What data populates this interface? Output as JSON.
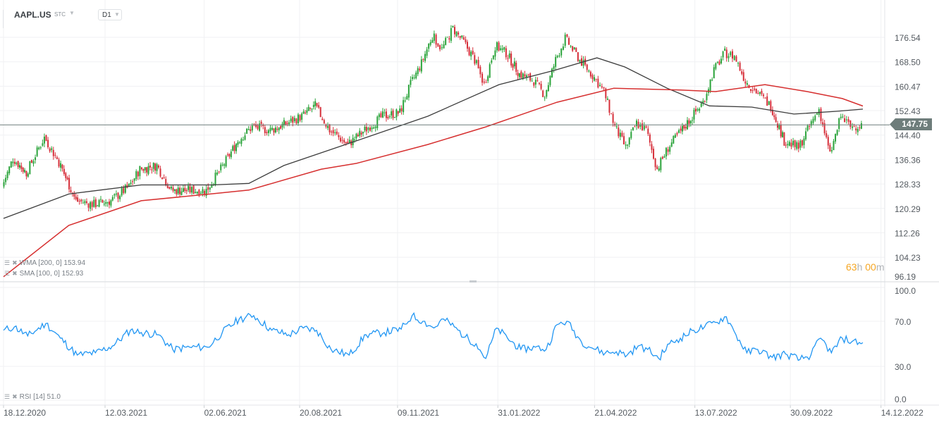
{
  "header": {
    "symbol": "AAPL.US",
    "instrument_type": "STC",
    "timeframe": "D1"
  },
  "indicators": {
    "wma_label": "WMA [200, 0] 153.94",
    "sma_label": "SMA [100, 0] 152.93",
    "rsi_label": "RSI [14] 51.0"
  },
  "timer": {
    "hours": "63",
    "h": "h",
    "minutes": "00",
    "m": "m"
  },
  "current_price": "147.75",
  "colors": {
    "up": "#2aa33a",
    "down": "#d62f3a",
    "wma": "#d62f2f",
    "sma": "#3c3c3c",
    "rsi": "#2196f3",
    "price_line": "#6e7d7b"
  },
  "chart_data": [
    {
      "type": "candlestick",
      "price_axis_ticks": [
        "176.54",
        "168.50",
        "160.47",
        "152.43",
        "144.40",
        "136.36",
        "128.33",
        "120.29",
        "112.26",
        "104.23",
        "96.19"
      ],
      "ylim": [
        96.19,
        176.54
      ],
      "date_ticks": [
        "18.12.2020",
        "12.03.2021",
        "02.06.2021",
        "20.08.2021",
        "09.11.2021",
        "31.01.2022",
        "21.04.2022",
        "13.07.2022",
        "30.09.2022",
        "14.12.2022"
      ],
      "xlim": [
        "2020-12-18",
        "2022-12-14"
      ],
      "grid": true,
      "closes": [
        [
          "2020-12-18",
          127.4
        ],
        [
          "2020-12-27",
          136.7
        ],
        [
          "2021-01-07",
          132.0
        ],
        [
          "2021-01-22",
          143.6
        ],
        [
          "2021-02-03",
          135.5
        ],
        [
          "2021-02-17",
          122.8
        ],
        [
          "2021-03-04",
          121.6
        ],
        [
          "2021-03-18",
          122.8
        ],
        [
          "2021-04-02",
          127.4
        ],
        [
          "2021-04-11",
          133.2
        ],
        [
          "2021-04-25",
          134.4
        ],
        [
          "2021-05-07",
          126.2
        ],
        [
          "2021-05-21",
          126.2
        ],
        [
          "2021-06-05",
          126.2
        ],
        [
          "2021-06-17",
          133.2
        ],
        [
          "2021-07-01",
          142.5
        ],
        [
          "2021-07-13",
          147.1
        ],
        [
          "2021-07-28",
          146.0
        ],
        [
          "2021-08-11",
          148.3
        ],
        [
          "2021-08-23",
          150.6
        ],
        [
          "2021-09-03",
          154.0
        ],
        [
          "2021-09-15",
          146.0
        ],
        [
          "2021-09-30",
          141.3
        ],
        [
          "2021-10-14",
          146.0
        ],
        [
          "2021-10-29",
          150.6
        ],
        [
          "2021-11-12",
          151.8
        ],
        [
          "2021-11-21",
          161.0
        ],
        [
          "2021-11-30",
          168.0
        ],
        [
          "2021-12-09",
          177.2
        ],
        [
          "2021-12-17",
          172.6
        ],
        [
          "2021-12-26",
          179.5
        ],
        [
          "2022-01-04",
          174.9
        ],
        [
          "2022-01-13",
          169.1
        ],
        [
          "2022-01-21",
          161.0
        ],
        [
          "2022-01-30",
          173.8
        ],
        [
          "2022-02-08",
          171.4
        ],
        [
          "2022-02-19",
          164.5
        ],
        [
          "2022-03-03",
          162.2
        ],
        [
          "2022-03-12",
          157.5
        ],
        [
          "2022-03-21",
          169.1
        ],
        [
          "2022-03-29",
          176.1
        ],
        [
          "2022-04-10",
          169.1
        ],
        [
          "2022-04-22",
          163.3
        ],
        [
          "2022-04-30",
          158.7
        ],
        [
          "2022-05-09",
          147.1
        ],
        [
          "2022-05-18",
          140.2
        ],
        [
          "2022-05-27",
          148.3
        ],
        [
          "2022-06-04",
          146.0
        ],
        [
          "2022-06-13",
          133.2
        ],
        [
          "2022-06-22",
          140.2
        ],
        [
          "2022-07-01",
          144.8
        ],
        [
          "2022-07-12",
          150.6
        ],
        [
          "2022-07-21",
          155.2
        ],
        [
          "2022-07-30",
          165.7
        ],
        [
          "2022-08-08",
          171.4
        ],
        [
          "2022-08-16",
          170.3
        ],
        [
          "2022-08-25",
          162.2
        ],
        [
          "2022-09-03",
          158.7
        ],
        [
          "2022-09-15",
          154.0
        ],
        [
          "2022-09-26",
          142.5
        ],
        [
          "2022-10-08",
          140.2
        ],
        [
          "2022-10-17",
          147.1
        ],
        [
          "2022-10-25",
          152.9
        ],
        [
          "2022-11-03",
          137.8
        ],
        [
          "2022-11-12",
          150.6
        ],
        [
          "2022-11-20",
          147.1
        ],
        [
          "2022-11-29",
          147.75
        ]
      ],
      "series": [
        {
          "name": "WMA [200, 0]",
          "values": [
            [
              "2020-12-18",
              97.8
            ],
            [
              "2021-02-10",
              114.7
            ],
            [
              "2021-04-11",
              122.8
            ],
            [
              "2021-06-09",
              125.1
            ],
            [
              "2021-07-09",
              126.3
            ],
            [
              "2021-09-07",
              133.2
            ],
            [
              "2021-10-06",
              135.1
            ],
            [
              "2021-12-04",
              141.3
            ],
            [
              "2022-01-21",
              147.1
            ],
            [
              "2022-03-21",
              155.2
            ],
            [
              "2022-05-07",
              159.8
            ],
            [
              "2022-07-01",
              159.2
            ],
            [
              "2022-07-30",
              158.7
            ],
            [
              "2022-09-09",
              161.0
            ],
            [
              "2022-10-14",
              158.7
            ],
            [
              "2022-11-12",
              156.4
            ],
            [
              "2022-11-29",
              153.94
            ]
          ]
        },
        {
          "name": "SMA [100, 0]",
          "values": [
            [
              "2020-12-18",
              117.0
            ],
            [
              "2021-02-10",
              125.0
            ],
            [
              "2021-04-11",
              128.0
            ],
            [
              "2021-06-09",
              128.0
            ],
            [
              "2021-07-09",
              128.5
            ],
            [
              "2021-08-07",
              134.4
            ],
            [
              "2021-10-06",
              142.5
            ],
            [
              "2021-12-04",
              150.6
            ],
            [
              "2022-02-01",
              161.0
            ],
            [
              "2022-03-19",
              165.7
            ],
            [
              "2022-04-23",
              169.8
            ],
            [
              "2022-05-16",
              166.8
            ],
            [
              "2022-06-20",
              159.8
            ],
            [
              "2022-07-25",
              154.0
            ],
            [
              "2022-08-29",
              153.6
            ],
            [
              "2022-10-03",
              151.3
            ],
            [
              "2022-11-07",
              152.2
            ],
            [
              "2022-11-29",
              152.93
            ]
          ]
        }
      ]
    },
    {
      "type": "line",
      "name": "RSI [14]",
      "ylim": [
        0,
        100
      ],
      "ticks": [
        "100.0",
        "70.0",
        "30.0",
        "0.0"
      ],
      "values": [
        [
          "2020-12-18",
          62
        ],
        [
          "2020-12-27",
          65
        ],
        [
          "2021-01-07",
          57
        ],
        [
          "2021-01-22",
          68
        ],
        [
          "2021-02-03",
          55
        ],
        [
          "2021-02-17",
          40
        ],
        [
          "2021-03-04",
          42
        ],
        [
          "2021-03-18",
          48
        ],
        [
          "2021-04-02",
          62
        ],
        [
          "2021-04-11",
          60
        ],
        [
          "2021-04-25",
          58
        ],
        [
          "2021-05-07",
          45
        ],
        [
          "2021-05-21",
          47
        ],
        [
          "2021-06-05",
          47
        ],
        [
          "2021-06-17",
          60
        ],
        [
          "2021-07-01",
          72
        ],
        [
          "2021-07-13",
          75
        ],
        [
          "2021-07-28",
          62
        ],
        [
          "2021-08-11",
          58
        ],
        [
          "2021-08-23",
          64
        ],
        [
          "2021-09-03",
          62
        ],
        [
          "2021-09-15",
          45
        ],
        [
          "2021-09-30",
          40
        ],
        [
          "2021-10-14",
          58
        ],
        [
          "2021-10-29",
          60
        ],
        [
          "2021-11-12",
          63
        ],
        [
          "2021-11-21",
          75
        ],
        [
          "2021-11-30",
          70
        ],
        [
          "2021-12-09",
          64
        ],
        [
          "2021-12-17",
          72
        ],
        [
          "2021-12-26",
          65
        ],
        [
          "2022-01-04",
          56
        ],
        [
          "2022-01-13",
          50
        ],
        [
          "2022-01-21",
          37
        ],
        [
          "2022-01-30",
          64
        ],
        [
          "2022-02-08",
          55
        ],
        [
          "2022-02-19",
          45
        ],
        [
          "2022-03-03",
          47
        ],
        [
          "2022-03-12",
          45
        ],
        [
          "2022-03-21",
          67
        ],
        [
          "2022-03-29",
          70
        ],
        [
          "2022-04-10",
          52
        ],
        [
          "2022-04-22",
          45
        ],
        [
          "2022-04-30",
          42
        ],
        [
          "2022-05-09",
          43
        ],
        [
          "2022-05-18",
          40
        ],
        [
          "2022-05-27",
          48
        ],
        [
          "2022-06-04",
          45
        ],
        [
          "2022-06-13",
          37
        ],
        [
          "2022-06-22",
          50
        ],
        [
          "2022-07-01",
          55
        ],
        [
          "2022-07-12",
          62
        ],
        [
          "2022-07-21",
          65
        ],
        [
          "2022-07-30",
          69
        ],
        [
          "2022-08-08",
          74
        ],
        [
          "2022-08-16",
          58
        ],
        [
          "2022-08-25",
          42
        ],
        [
          "2022-09-03",
          45
        ],
        [
          "2022-09-15",
          38
        ],
        [
          "2022-09-26",
          41
        ],
        [
          "2022-10-08",
          36
        ],
        [
          "2022-10-17",
          40
        ],
        [
          "2022-10-25",
          55
        ],
        [
          "2022-11-03",
          42
        ],
        [
          "2022-11-12",
          55
        ],
        [
          "2022-11-20",
          52
        ],
        [
          "2022-11-29",
          51
        ]
      ]
    }
  ]
}
